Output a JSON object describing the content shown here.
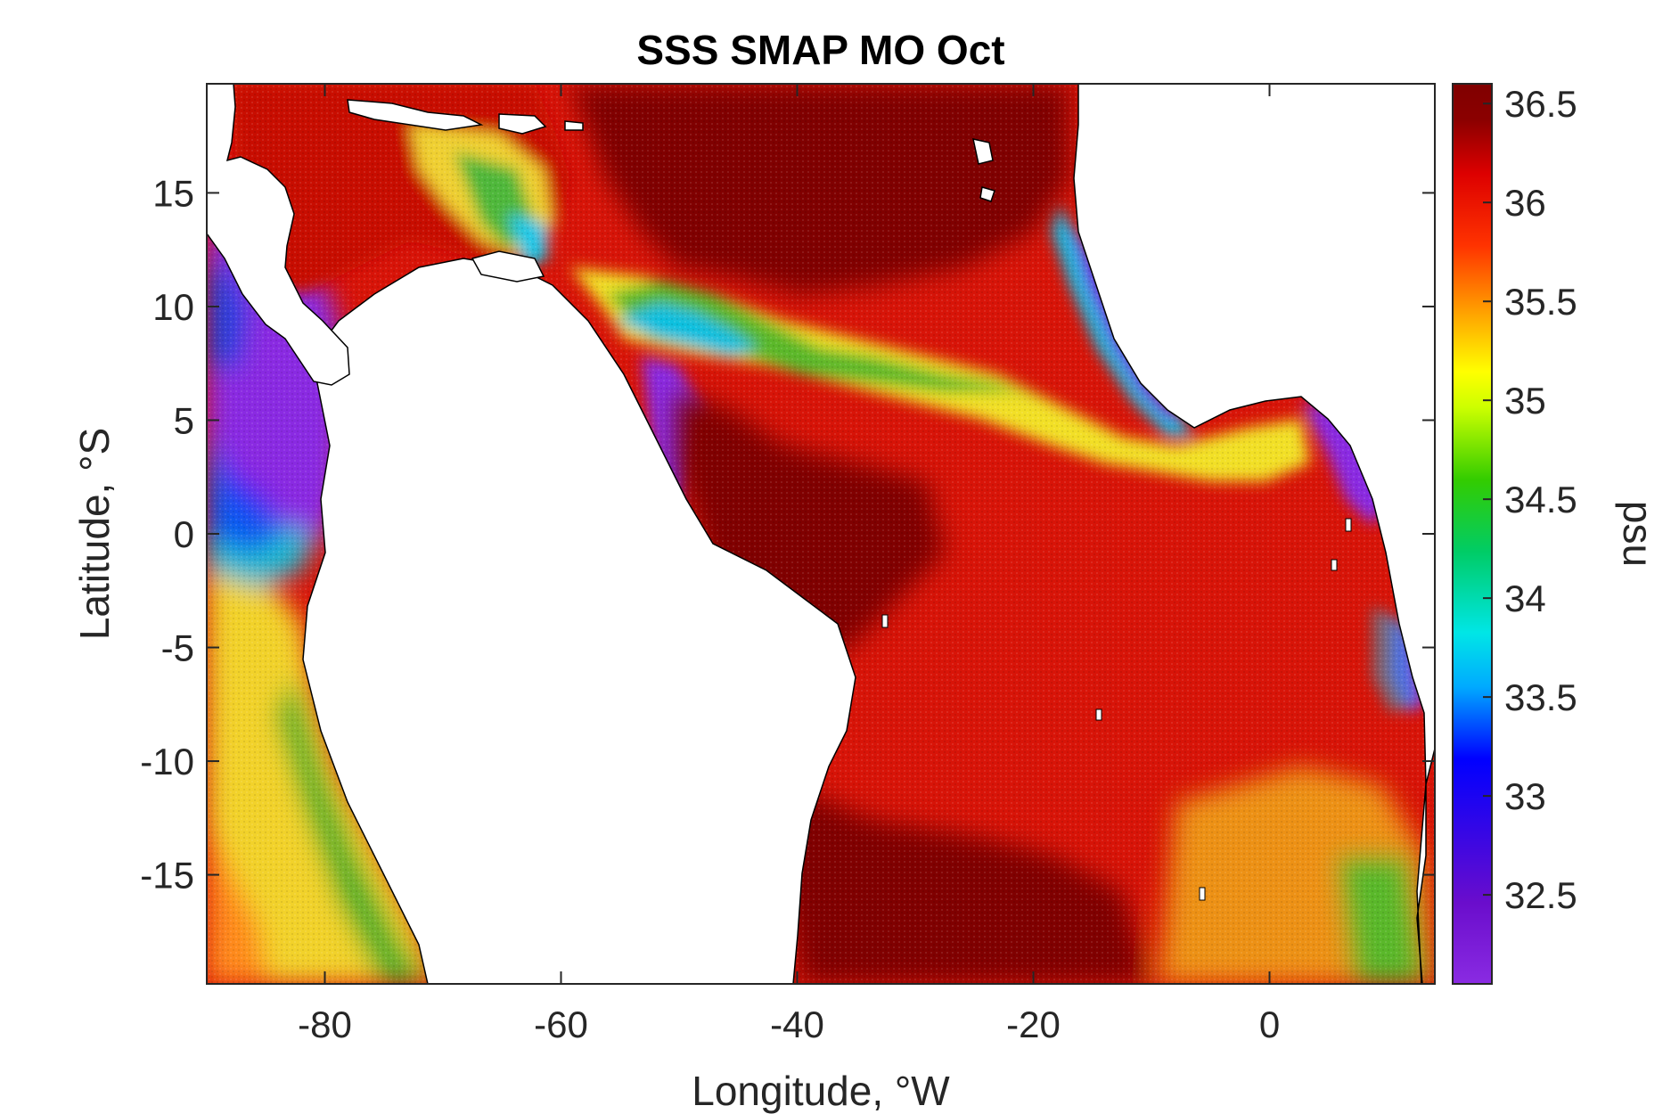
{
  "title": "SSS SMAP MO Oct",
  "xlabel": "Longitude, °W",
  "ylabel": "Latitude, °S",
  "colorbar_label": "psu",
  "x_ticks": [
    -80,
    -60,
    -40,
    -20,
    0
  ],
  "y_ticks": [
    15,
    10,
    5,
    0,
    -5,
    -10,
    -15
  ],
  "colorbar_ticks": [
    "36.5",
    "36",
    "35.5",
    "35",
    "34.5",
    "34",
    "33.5",
    "33",
    "32.5"
  ],
  "colorbar_values": [
    36.5,
    36.0,
    35.5,
    35.0,
    34.5,
    34.0,
    33.5,
    33.0,
    32.5
  ],
  "map_extent": {
    "lon": [
      -90,
      14
    ],
    "lat": [
      -19.8,
      19.8
    ]
  },
  "colorbar_range": [
    32.05,
    36.6
  ],
  "colormap": [
    "#8a2be2",
    "#6a0dcc",
    "#0000ff",
    "#00aaff",
    "#00e6e6",
    "#00cc66",
    "#33cc00",
    "#ccff00",
    "#ffff00",
    "#ffaa00",
    "#ff3300",
    "#8b0000"
  ],
  "colors": {
    "very_high_salinity": "#800000",
    "high_salinity": "#dd1100",
    "mid_salinity": "#f0e020",
    "low_salinity": "#2aa52a",
    "fresh_water": "#8a2be2",
    "land": "#ffffff",
    "coastline": "#000000"
  }
}
